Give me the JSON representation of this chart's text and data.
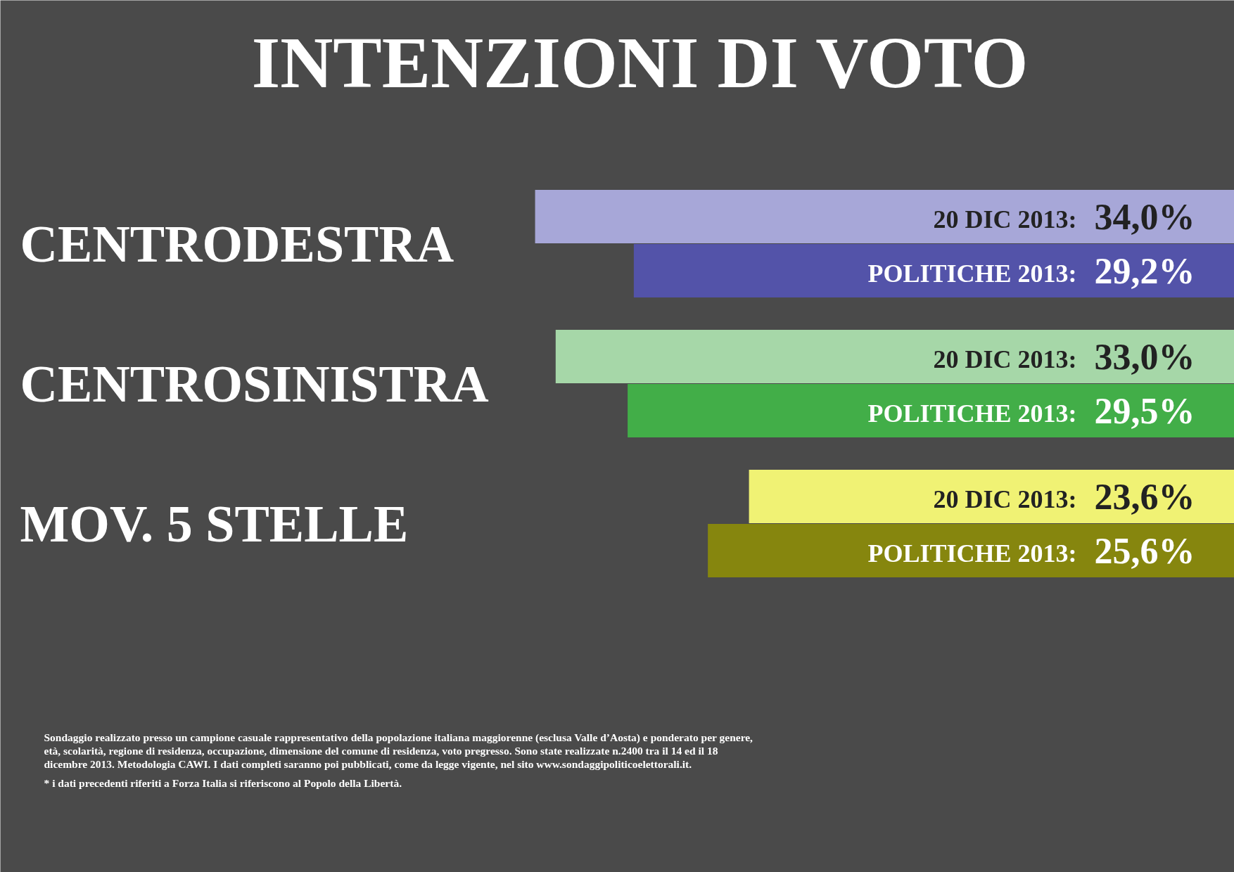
{
  "chart_data": {
    "type": "bar",
    "orientation": "horizontal",
    "title": "INTENZIONI DI VOTO",
    "categories": [
      "CENTRODESTRA",
      "CENTROSINISTRA",
      "MOV. 5 STELLE"
    ],
    "series": [
      {
        "name": "20 DIC 2013:",
        "colors": [
          "#a7a7d8",
          "#a6d7a8",
          "#f0f274"
        ],
        "values": [
          34.0,
          33.0,
          23.6
        ],
        "value_labels": [
          "34,0%",
          "33,0%",
          "23,6%"
        ]
      },
      {
        "name": "POLITICHE 2013:",
        "colors": [
          "#5353a9",
          "#42ae48",
          "#86860e"
        ],
        "values": [
          29.2,
          29.5,
          25.6
        ],
        "value_labels": [
          "29,2%",
          "29,5%",
          "25,6%"
        ]
      }
    ],
    "xlim": [
      60,
      0
    ],
    "tick_labels": "y",
    "grid": false,
    "annotations": [
      "Sondaggio realizzato presso un campione casuale rappresentativo della popolazione italiana maggiorenne (esclusa Valle d’Aosta) e ponderato per genere, età, scolarità, regione di residenza, occupazione, dimensione del comune di residenza, voto pregresso. Sono state realizzate n.2400 tra il 14 ed il 18 dicembre 2013. Metodologia CAWI. I dati completi saranno poi pubblicati, come da legge vigente, nel sito www.sondaggipoliticoelettorali.it.",
      "* i dati precedenti riferiti a Forza Italia si riferiscono al Popolo della Libertà."
    ]
  }
}
